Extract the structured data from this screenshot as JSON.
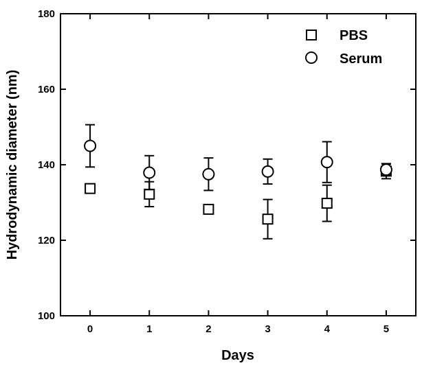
{
  "chart_data": {
    "type": "scatter",
    "title": "",
    "xlabel": "Days",
    "ylabel": "Hydrodynamic diameter (nm)",
    "xlim": [
      -0.5,
      5.5
    ],
    "ylim": [
      100,
      180
    ],
    "x_ticks": [
      0,
      1,
      2,
      3,
      4,
      5
    ],
    "y_ticks": [
      100,
      120,
      140,
      160,
      180
    ],
    "grid": false,
    "legend_position": "top-right",
    "series": [
      {
        "name": "PBS",
        "marker": "square",
        "x": [
          0,
          1,
          2,
          3,
          4,
          5
        ],
        "y": [
          133.7,
          132.2,
          128.2,
          125.6,
          129.8,
          138.3
        ],
        "error": [
          0,
          3.3,
          0,
          5.2,
          4.8,
          2.0
        ]
      },
      {
        "name": "Serum",
        "marker": "circle",
        "x": [
          0,
          1,
          2,
          3,
          4,
          5
        ],
        "y": [
          145.0,
          137.9,
          137.5,
          138.2,
          140.7,
          138.7
        ],
        "error": [
          5.6,
          4.5,
          4.3,
          3.3,
          5.4,
          1.5
        ]
      }
    ]
  }
}
